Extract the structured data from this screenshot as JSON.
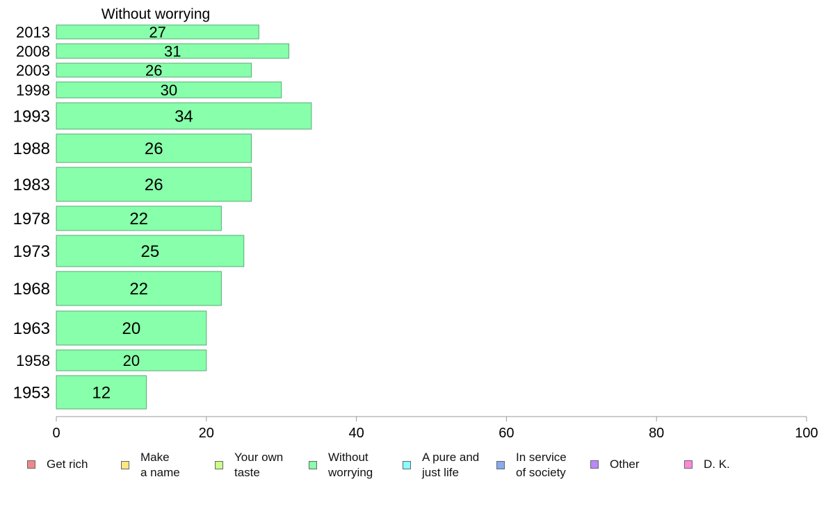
{
  "chart_data": {
    "type": "bar",
    "orientation": "horizontal",
    "title": "Without worrying",
    "categories": [
      "2013",
      "2008",
      "2003",
      "1998",
      "1993",
      "1988",
      "1983",
      "1978",
      "1973",
      "1968",
      "1963",
      "1958",
      "1953"
    ],
    "values": [
      27,
      31,
      26,
      30,
      34,
      26,
      26,
      22,
      25,
      22,
      20,
      20,
      12
    ],
    "x_ticks": [
      "0",
      "20",
      "40",
      "60",
      "80",
      "100"
    ],
    "xlim": [
      0,
      100
    ],
    "bar_color": "#88ffaa",
    "grid": false,
    "legend_position": "bottom",
    "legend": [
      {
        "label": "Get rich",
        "color": "#f08888"
      },
      {
        "label": "Make\na name",
        "color": "#ffe680"
      },
      {
        "label": "Your own\ntaste",
        "color": "#ccff88"
      },
      {
        "label": "Without\nworrying",
        "color": "#88ffaa"
      },
      {
        "label": "A pure and\njust life",
        "color": "#88ffff"
      },
      {
        "label": "In service\nof society",
        "color": "#88aaee"
      },
      {
        "label": "Other",
        "color": "#bb88ff"
      },
      {
        "label": "D. K.",
        "color": "#ff88dd"
      }
    ]
  }
}
